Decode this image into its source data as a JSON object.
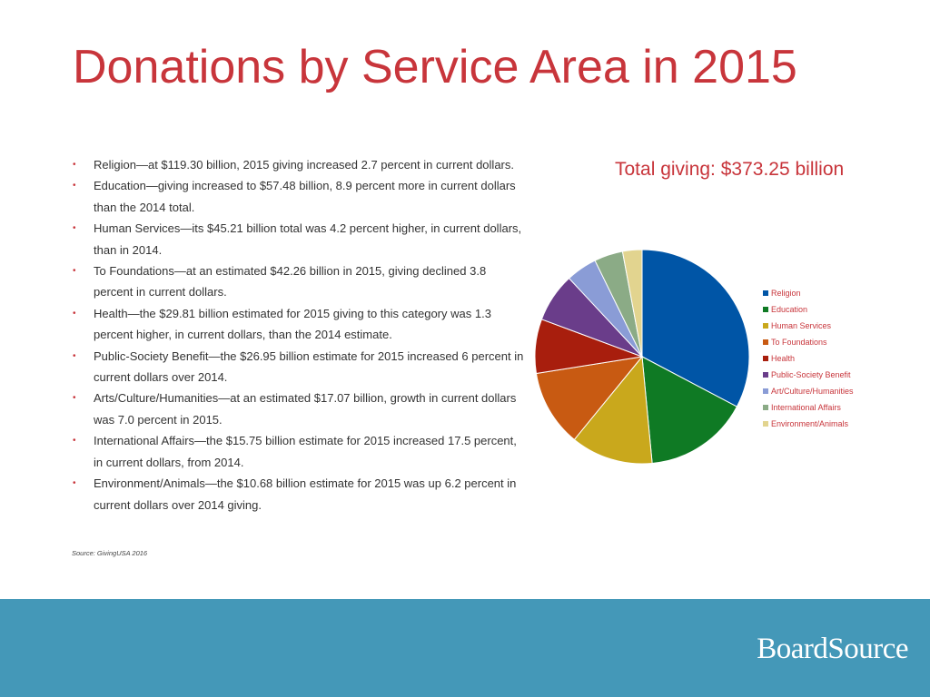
{
  "title": "Donations by Service Area in 2015",
  "bullets": [
    "Religion—at $119.30 billion, 2015 giving increased 2.7 percent in current dollars.",
    "Education—giving increased to $57.48 billion, 8.9 percent more in current dollars than the 2014 total.",
    "Human Services—its $45.21 billion total was 4.2 percent higher, in current dollars, than in 2014.",
    "To Foundations—at an estimated $42.26 billion in 2015, giving declined 3.8 percent in current dollars.",
    "Health—the $29.81 billion estimated for 2015 giving to this category was 1.3 percent higher, in current dollars, than the 2014 estimate.",
    "Public-Society Benefit—the $26.95 billion estimate for 2015 increased 6 percent in current dollars over 2014.",
    "Arts/Culture/Humanities—at an estimated $17.07 billion, growth in current dollars was 7.0 percent in 2015.",
    "International Affairs—the $15.75 billion estimate for 2015 increased 17.5 percent, in current dollars, from 2014.",
    "Environment/Animals—the $10.68 billion estimate for 2015 was up 6.2 percent in current dollars over 2014 giving."
  ],
  "bullet_glyph": "•",
  "source": "Source: GivingUSA 2016",
  "logo_text": "BoardSource",
  "colors": {
    "title": "#c8353b",
    "footer": "#4498b8"
  },
  "chart_data": {
    "type": "pie",
    "title": "Total giving: $373.25 billion",
    "legend_position": "right",
    "categories": [
      "Religion",
      "Education",
      "Human Services",
      "To Foundations",
      "Health",
      "Public-Society Benefit",
      "Art/Culture/Humanities",
      "International Affairs",
      "Environment/Animals"
    ],
    "values": [
      119.3,
      57.48,
      45.21,
      42.26,
      29.81,
      26.95,
      17.07,
      15.75,
      10.68
    ],
    "colors": [
      "#0055a6",
      "#0f7a24",
      "#c9a81c",
      "#c85a12",
      "#a81e0d",
      "#6a3d8a",
      "#8a9cd6",
      "#8bab86",
      "#e2d48f"
    ]
  }
}
